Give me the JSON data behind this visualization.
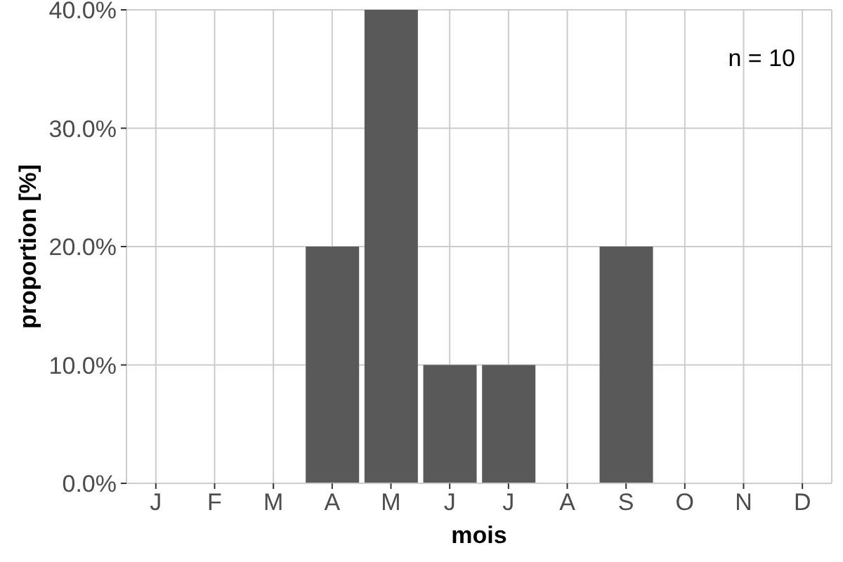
{
  "chart_data": {
    "type": "bar",
    "xlabel": "mois",
    "ylabel": "proportion [%]",
    "categories": [
      "J",
      "F",
      "M",
      "A",
      "M",
      "J",
      "J",
      "A",
      "S",
      "O",
      "N",
      "D"
    ],
    "values": [
      0,
      0,
      0,
      20,
      40,
      10,
      10,
      0,
      20,
      0,
      0,
      0
    ],
    "color": "#595959",
    "ylim": [
      0,
      40
    ],
    "yticks": [
      {
        "value": 0,
        "label": "0.0%"
      },
      {
        "value": 10,
        "label": "10.0%"
      },
      {
        "value": 20,
        "label": "20.0%"
      },
      {
        "value": 30,
        "label": "30.0%"
      },
      {
        "value": 40,
        "label": "40.0%"
      }
    ],
    "grid": true,
    "annotations": [
      "n = 10"
    ]
  }
}
